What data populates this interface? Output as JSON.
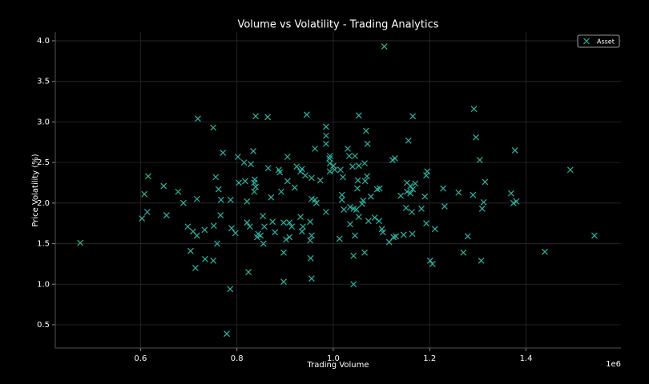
{
  "chart_data": {
    "type": "scatter",
    "title": "Volume vs Volatility - Trading Analytics",
    "x_label": "Trading Volume",
    "y_label": "Price Volatility (%)",
    "x_offset_label": "1e6",
    "xlim": [
      423100,
      1597000
    ],
    "ylim": [
      0.214,
      4.108
    ],
    "xticks": [
      {
        "value": 600000,
        "label": "0.6"
      },
      {
        "value": 800000,
        "label": "0.8"
      },
      {
        "value": 1000000,
        "label": "1.0"
      },
      {
        "value": 1200000,
        "label": "1.2"
      },
      {
        "value": 1400000,
        "label": "1.4"
      }
    ],
    "yticks": [
      0.5,
      {
        "value": 1,
        "label": "1.0"
      },
      1.5,
      {
        "value": 2,
        "label": "2.0"
      },
      2.5,
      {
        "value": 3,
        "label": "3.0"
      },
      3.5,
      {
        "value": 4,
        "label": "4.0"
      }
    ],
    "grid": true,
    "legend": "upper right",
    "series": [
      {
        "name": "Asset",
        "color": "#2bb5a3",
        "marker": "x",
        "x": [
          475000,
          1106000,
          1542000,
          1492000,
          1439000,
          1377000,
          1292000,
          1296000,
          1304000,
          1315000,
          1312000,
          1309000,
          1307000,
          1369000,
          1374000,
          1380000,
          1290000,
          1260000,
          1228000,
          1231000,
          1279000,
          1270000,
          1211000,
          1206000,
          1201000,
          1193000,
          1190000,
          1195000,
          1193000,
          1183000,
          1165000,
          1156000,
          1170000,
          1160000,
          1165000,
          1160000,
          1153000,
          1163000,
          1164000,
          1151000,
          1146000,
          1140000,
          1153000,
          1123000,
          1128000,
          1130000,
          1125000,
          1116000,
          1103000,
          1101000,
          1095000,
          1096000,
          1091000,
          1086000,
          1078000,
          1071000,
          1068000,
          1070000,
          1066000,
          1065000,
          1062000,
          1060000,
          1073000,
          1065000,
          1053000,
          1051000,
          1050000,
          1053000,
          1045000,
          1040000,
          1033000,
          1030000,
          1035000,
          1042000,
          1048000,
          1053000,
          1035000,
          1042000,
          1042000,
          1045000,
          1018000,
          1018000,
          1022000,
          1013000,
          1020000,
          1015000,
          1003000,
          1000000,
          993000,
          992000,
          993000,
          993000,
          985000,
          985000,
          985000,
          985000,
          973000,
          962000,
          965000,
          962000,
          955000,
          955000,
          952000,
          955000,
          952000,
          953000,
          955000,
          945000,
          942000,
          935000,
          937000,
          935000,
          932000,
          932000,
          924000,
          920000,
          914000,
          909000,
          909000,
          902000,
          905000,
          905000,
          897000,
          897000,
          897000,
          892000,
          889000,
          887000,
          879000,
          874000,
          871000,
          865000,
          864000,
          857000,
          854000,
          855000,
          849000,
          842000,
          844000,
          839000,
          837000,
          836000,
          839000,
          836000,
          834000,
          829000,
          827000,
          824000,
          821000,
          821000,
          817000,
          815000,
          802000,
          804000,
          797000,
          789000,
          787000,
          786000,
          779000,
          771000,
          767000,
          766000,
          762000,
          756000,
          759000,
          752000,
          751000,
          751000,
          733000,
          734000,
          719000,
          717000,
          717000,
          714000,
          709000,
          704000,
          698000,
          689000,
          678000,
          654000,
          648000,
          616000,
          614000,
          608000,
          603000
        ],
        "y": [
          1.51,
          3.93,
          1.6,
          2.41,
          1.4,
          2.65,
          3.16,
          2.81,
          2.53,
          2.26,
          2.01,
          1.93,
          1.29,
          2.12,
          2.0,
          2.02,
          2.1,
          2.13,
          2.18,
          1.96,
          1.59,
          1.39,
          1.68,
          1.25,
          1.29,
          1.75,
          2.08,
          2.39,
          2.34,
          1.93,
          3.07,
          2.77,
          2.24,
          2.21,
          2.17,
          2.12,
          2.14,
          1.89,
          1.62,
          1.94,
          1.61,
          2.09,
          2.25,
          2.53,
          2.55,
          1.59,
          1.58,
          1.52,
          1.64,
          1.68,
          1.78,
          2.18,
          2.17,
          1.82,
          2.08,
          2.73,
          2.89,
          2.33,
          2.27,
          2.49,
          2.03,
          1.99,
          1.78,
          1.39,
          3.08,
          2.28,
          2.18,
          2.46,
          2.58,
          2.45,
          2.58,
          2.67,
          1.95,
          1.93,
          1.92,
          1.83,
          1.74,
          1.35,
          1.0,
          1.6,
          2.1,
          2.04,
          1.92,
          1.56,
          2.32,
          2.41,
          2.41,
          2.46,
          2.58,
          2.55,
          2.49,
          2.39,
          1.89,
          2.94,
          2.83,
          2.73,
          2.28,
          2.04,
          2.0,
          2.67,
          2.31,
          2.05,
          1.77,
          1.6,
          1.54,
          1.32,
          1.07,
          3.09,
          2.34,
          2.42,
          1.71,
          1.65,
          1.83,
          2.39,
          2.45,
          2.19,
          1.71,
          1.58,
          1.76,
          1.55,
          2.27,
          2.57,
          1.76,
          1.39,
          1.03,
          2.14,
          2.38,
          2.41,
          1.64,
          1.77,
          2.07,
          2.43,
          3.06,
          1.71,
          1.84,
          1.5,
          1.6,
          1.58,
          1.62,
          3.07,
          2.29,
          2.25,
          2.2,
          2.14,
          2.64,
          2.48,
          1.71,
          1.15,
          1.76,
          2.02,
          2.27,
          2.5,
          2.57,
          2.25,
          1.63,
          1.69,
          2.04,
          0.94,
          0.39,
          2.62,
          2.04,
          1.85,
          2.17,
          2.32,
          1.5,
          1.72,
          2.93,
          1.29,
          1.67,
          1.31,
          3.04,
          2.05,
          1.6,
          1.2,
          1.65,
          1.41,
          1.71,
          2.0,
          2.14,
          1.85,
          2.21,
          2.33,
          1.89,
          2.11,
          1.81
        ]
      }
    ]
  }
}
